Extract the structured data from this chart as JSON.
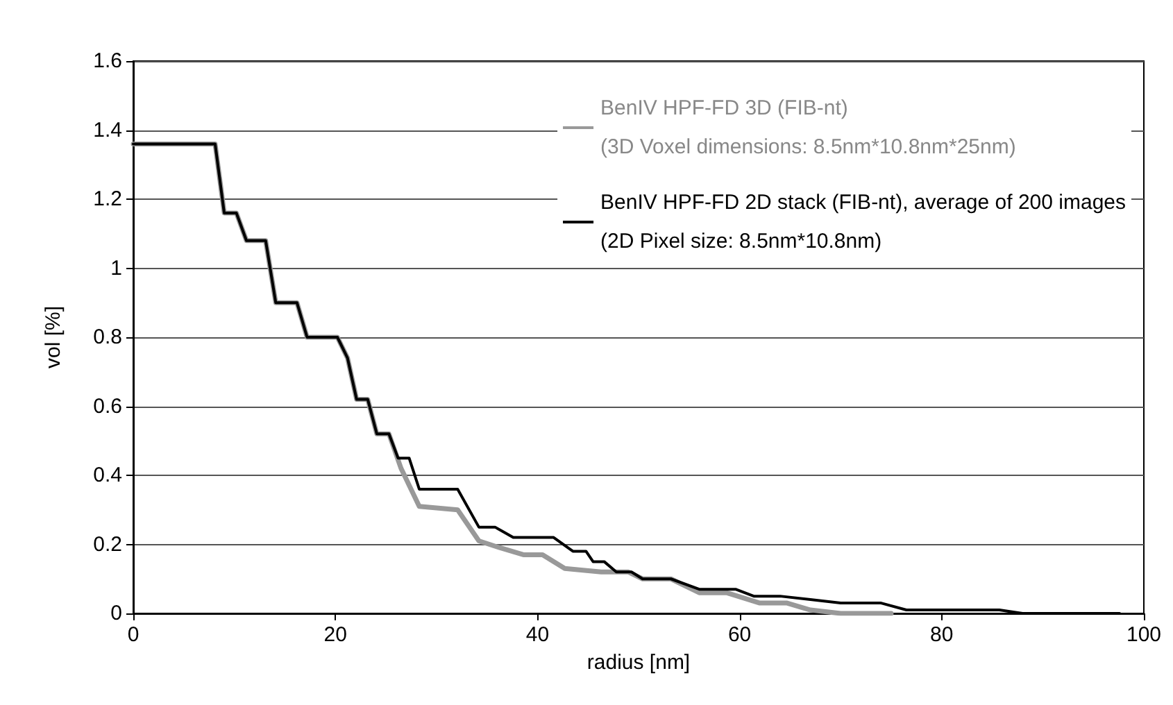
{
  "chart_data": {
    "type": "line",
    "xlabel": "radius [nm]",
    "ylabel": "vol [%]",
    "xlim": [
      0,
      100
    ],
    "xticks": [
      0,
      20,
      40,
      60,
      80,
      100
    ],
    "ylim": [
      0,
      1.6
    ],
    "yticks": [
      0,
      0.2,
      0.4,
      0.6,
      0.8,
      1,
      1.2,
      1.4,
      1.6
    ],
    "grid": "y",
    "legend": "top right",
    "marker": "none",
    "line_style": "solid",
    "series": [
      {
        "name": "BenIV HPF-FD 3D (FIB-nt)\n(3D Voxel dimensions: 8.5nm*10.8nm*25nm)",
        "color": "#999999",
        "x": [
          0,
          8.1,
          9.0,
          10.2,
          11.2,
          13.1,
          14.1,
          16.2,
          17.2,
          20.2,
          21.2,
          22.1,
          23.2,
          24.1,
          25.3,
          26.5,
          28.3,
          32.1,
          34.2,
          36.3,
          38.6,
          40.5,
          42.7,
          46.3,
          49,
          50.4,
          53.2,
          56,
          58.7,
          62,
          64.7,
          67,
          70,
          75
        ],
        "values": [
          1.36,
          1.36,
          1.16,
          1.16,
          1.08,
          1.08,
          0.9,
          0.9,
          0.8,
          0.8,
          0.74,
          0.62,
          0.62,
          0.52,
          0.52,
          0.42,
          0.31,
          0.3,
          0.21,
          0.19,
          0.17,
          0.17,
          0.13,
          0.12,
          0.12,
          0.1,
          0.1,
          0.06,
          0.06,
          0.03,
          0.03,
          0.01,
          0,
          0
        ]
      },
      {
        "name": "BenIV HPF-FD 2D stack (FIB-nt), average of 200 images\n(2D Pixel size: 8.5nm*10.8nm)",
        "color": "#000000",
        "x": [
          0,
          8.1,
          9.0,
          10.2,
          11.2,
          13.1,
          14.1,
          16.2,
          17.2,
          20.2,
          21.2,
          22.1,
          23.2,
          24.1,
          25.3,
          26.2,
          27.3,
          28.3,
          32.1,
          34.2,
          35.8,
          37.6,
          41.6,
          43.5,
          44.8,
          45.5,
          46.6,
          47.8,
          49.3,
          50.4,
          53.2,
          56,
          59.6,
          61.4,
          64,
          67,
          70,
          74,
          76.5,
          85.7,
          88,
          97.6
        ],
        "values": [
          1.36,
          1.36,
          1.16,
          1.16,
          1.08,
          1.08,
          0.9,
          0.9,
          0.8,
          0.8,
          0.74,
          0.62,
          0.62,
          0.52,
          0.52,
          0.45,
          0.45,
          0.36,
          0.36,
          0.25,
          0.25,
          0.22,
          0.22,
          0.18,
          0.18,
          0.15,
          0.15,
          0.12,
          0.12,
          0.1,
          0.1,
          0.07,
          0.07,
          0.05,
          0.05,
          0.04,
          0.03,
          0.03,
          0.01,
          0.01,
          0,
          0
        ]
      }
    ]
  }
}
